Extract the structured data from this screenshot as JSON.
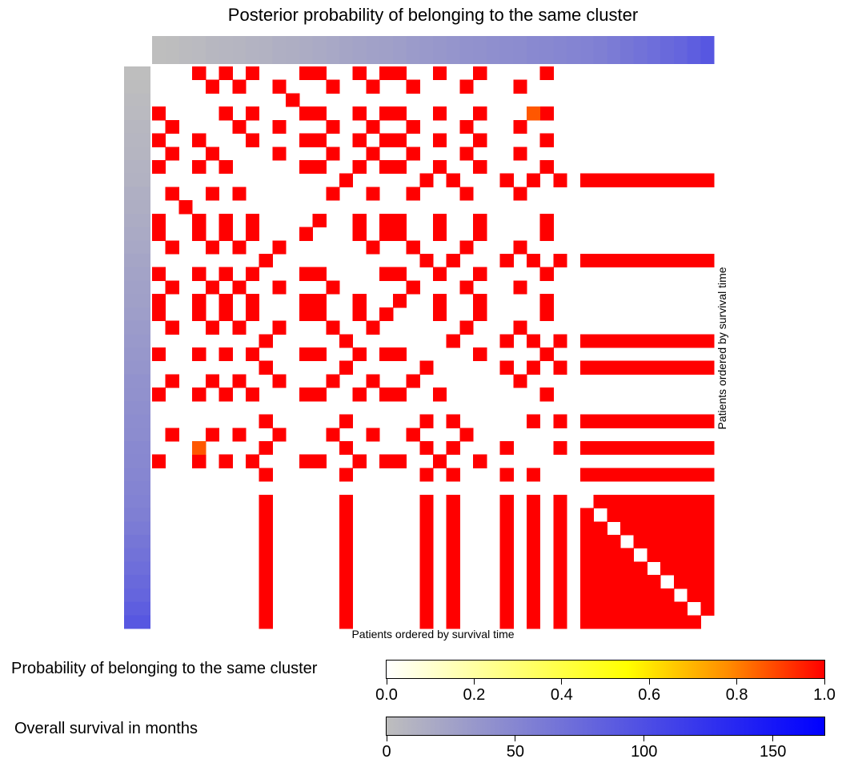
{
  "chart_data": {
    "type": "heatmap",
    "title": "Posterior probability of belonging to the same cluster",
    "xlabel": "Patients ordered by survival time",
    "ylabel": "Patients ordered by survival time",
    "n_patients": 42,
    "groups": [
      [
        0,
        3,
        5,
        7,
        11,
        12,
        15,
        17,
        18,
        21,
        24,
        29
      ],
      [
        1,
        4,
        6,
        9,
        13,
        16,
        19,
        23,
        27
      ],
      [
        2,
        10
      ],
      [
        8,
        14,
        20,
        22,
        26,
        28,
        30,
        32,
        33,
        34,
        35,
        36,
        37,
        38,
        39,
        40,
        41
      ],
      [
        25
      ],
      [
        31
      ]
    ],
    "minor_pairs": [
      {
        "row": 3,
        "col": 28,
        "value": 0.83
      },
      {
        "row": 28,
        "col": 3,
        "value": 0.83
      }
    ],
    "cluster_probability": 1.0,
    "survival_months": [
      0,
      1,
      3,
      4,
      6,
      7,
      8,
      10,
      11,
      13,
      14,
      16,
      18,
      20,
      22,
      24,
      26,
      27,
      29,
      31,
      33,
      35,
      37,
      39,
      40,
      42,
      44,
      45,
      47,
      48,
      50,
      52,
      54,
      56,
      60,
      64,
      68,
      72,
      76,
      80,
      86,
      92
    ],
    "legend_probability": {
      "label": "Probability of belonging to the same cluster",
      "ticks": [
        "0.0",
        "0.2",
        "0.4",
        "0.6",
        "0.8",
        "1.0"
      ],
      "range": [
        0,
        1
      ],
      "colors": [
        "#ffffff",
        "#ffff00",
        "#ff0000"
      ]
    },
    "legend_survival": {
      "label": "Overall survival in months",
      "ticks": [
        "0",
        "50",
        "100",
        "150"
      ],
      "range": [
        0,
        170
      ],
      "colors": [
        "#bebebe",
        "#0000ff"
      ]
    }
  }
}
